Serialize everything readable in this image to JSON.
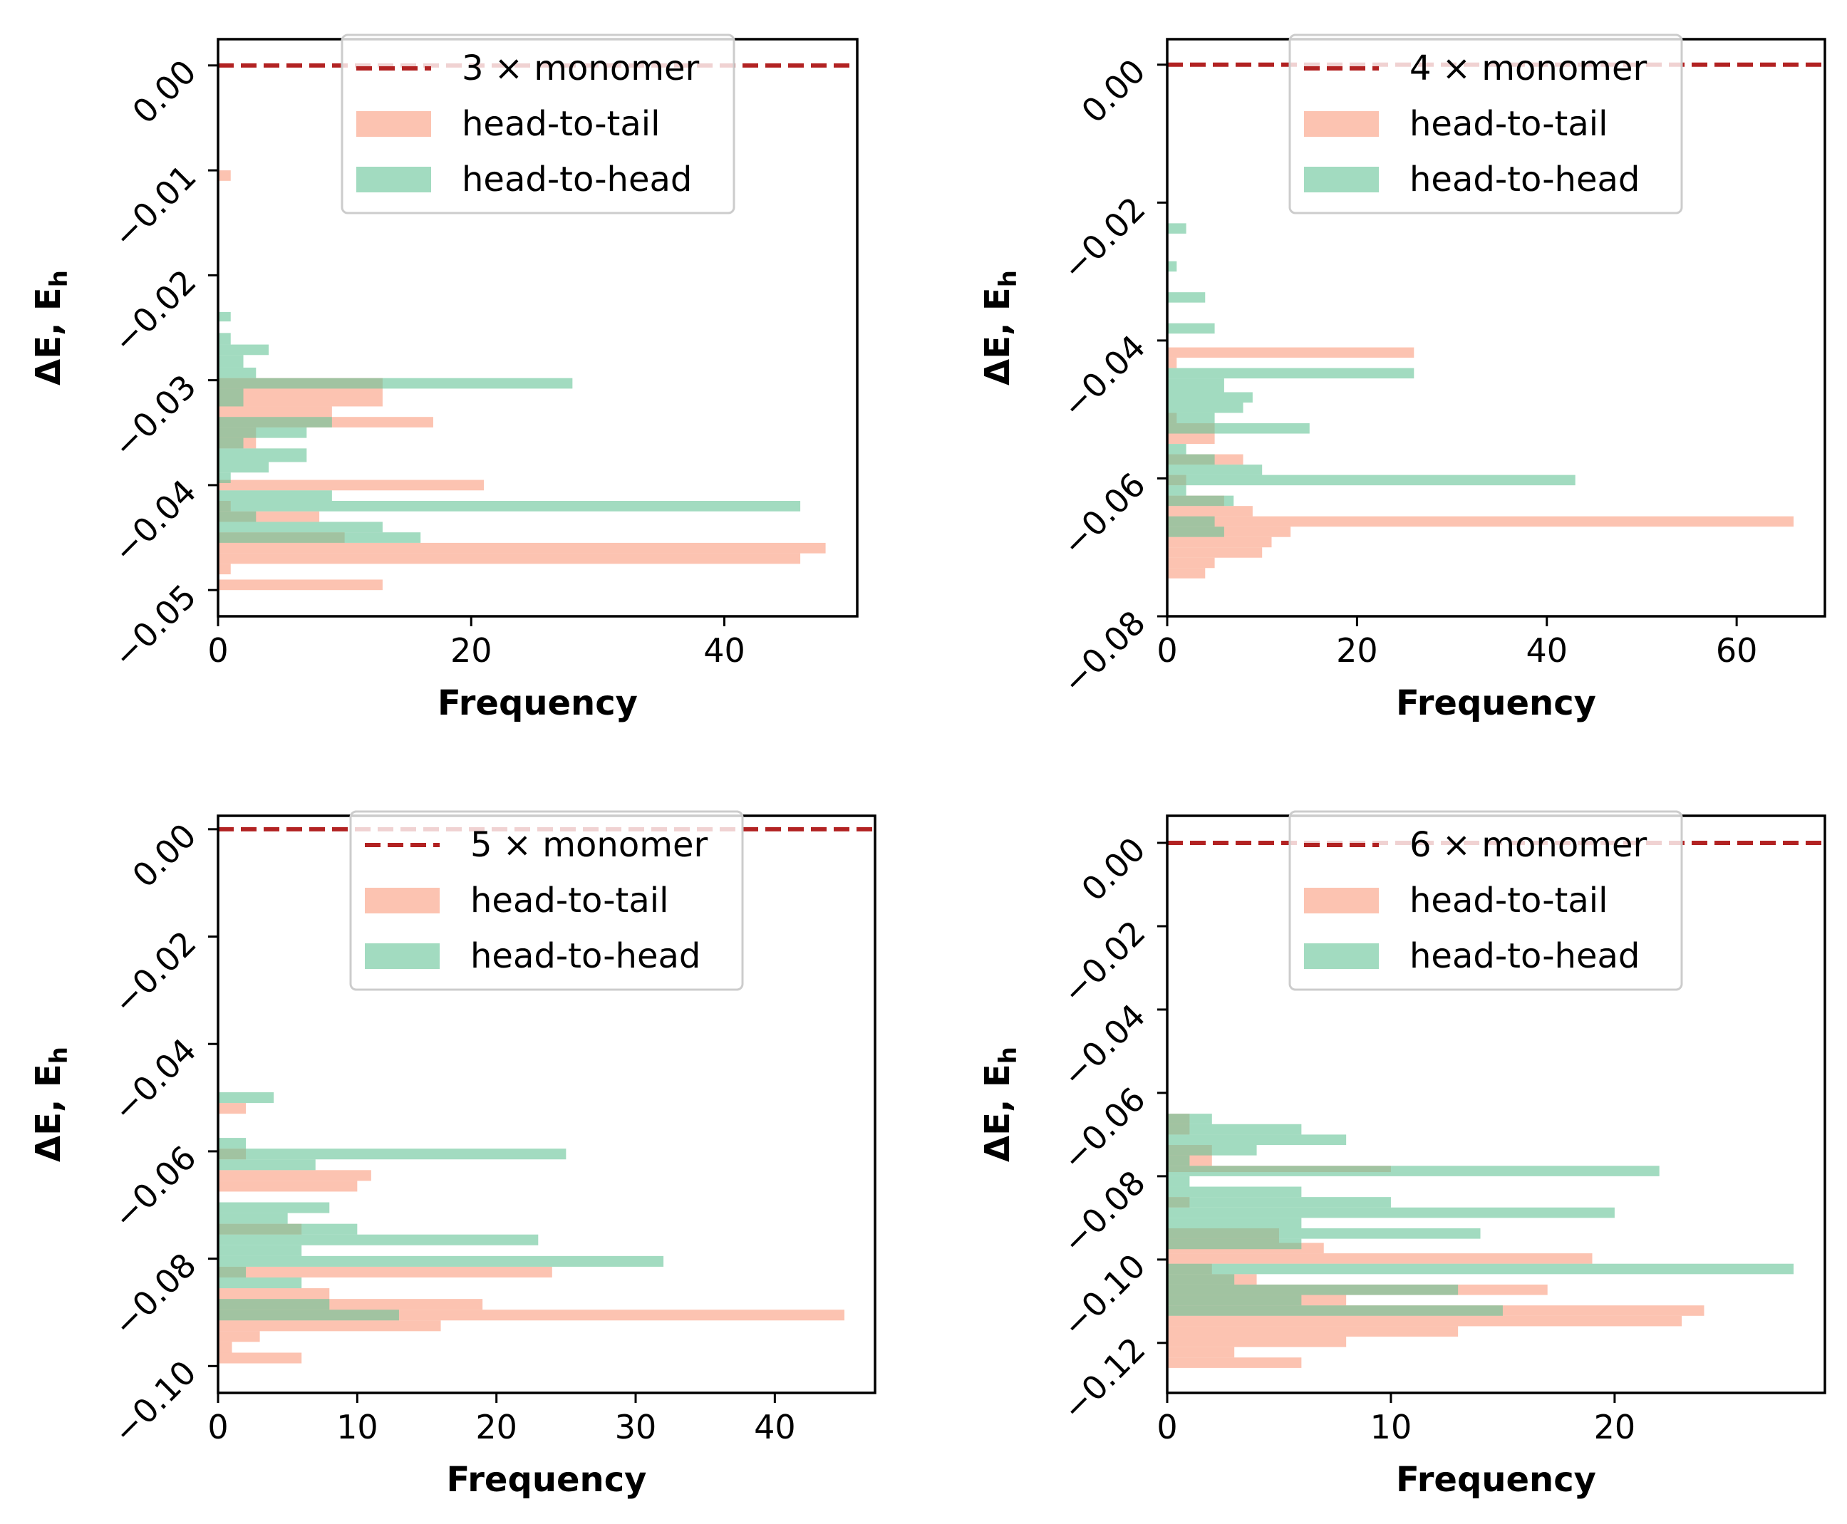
{
  "colors": {
    "head_to_tail": "#FA9B7D",
    "head_to_head": "#64C396",
    "monomer_line": "#B22222"
  },
  "chart_data": [
    {
      "type": "bar",
      "orientation": "horizontal",
      "xlabel": "Frequency",
      "ylabel": "ΔE, E",
      "ylabel_subscript": "h",
      "xlim": [
        0,
        50.5
      ],
      "ylim": [
        -0.0525,
        0.0025
      ],
      "xticks": [
        0,
        20,
        40
      ],
      "yticks": [
        0.0,
        -0.01,
        -0.02,
        -0.03,
        -0.04,
        -0.05
      ],
      "ytick_labels": [
        "0.00",
        "−0.01",
        "−0.02",
        "−0.03",
        "−0.04",
        "−0.05"
      ],
      "legend": {
        "position": "top-center",
        "entries": [
          "3 × monomer",
          "head-to-tail",
          "head-to-head"
        ]
      },
      "reference_line": {
        "label": "3 × monomer",
        "y": 0.0,
        "style": "dashed"
      },
      "series": [
        {
          "name": "head-to-tail",
          "bars": [
            {
              "y0": -0.011,
              "y1": -0.01,
              "value": 1
            },
            {
              "y0": -0.0325,
              "y1": -0.0298,
              "value": 13
            },
            {
              "y0": -0.0335,
              "y1": -0.0325,
              "value": 9
            },
            {
              "y0": -0.0345,
              "y1": -0.0335,
              "value": 17
            },
            {
              "y0": -0.0365,
              "y1": -0.0345,
              "value": 3
            },
            {
              "y0": -0.0405,
              "y1": -0.0395,
              "value": 21
            },
            {
              "y0": -0.0425,
              "y1": -0.0415,
              "value": 1
            },
            {
              "y0": -0.0435,
              "y1": -0.0425,
              "value": 8
            },
            {
              "y0": -0.0455,
              "y1": -0.0445,
              "value": 10
            },
            {
              "y0": -0.0465,
              "y1": -0.0455,
              "value": 48
            },
            {
              "y0": -0.0475,
              "y1": -0.0465,
              "value": 46
            },
            {
              "y0": -0.0485,
              "y1": -0.0475,
              "value": 1
            },
            {
              "y0": -0.05,
              "y1": -0.049,
              "value": 13
            }
          ]
        },
        {
          "name": "head-to-head",
          "bars": [
            {
              "y0": -0.0244,
              "y1": -0.0235,
              "value": 1
            },
            {
              "y0": -0.0266,
              "y1": -0.0255,
              "value": 1
            },
            {
              "y0": -0.0276,
              "y1": -0.0266,
              "value": 4
            },
            {
              "y0": -0.0288,
              "y1": -0.0276,
              "value": 2
            },
            {
              "y0": -0.0298,
              "y1": -0.0288,
              "value": 3
            },
            {
              "y0": -0.0308,
              "y1": -0.0298,
              "value": 28
            },
            {
              "y0": -0.0325,
              "y1": -0.0308,
              "value": 2
            },
            {
              "y0": -0.0345,
              "y1": -0.0335,
              "value": 9
            },
            {
              "y0": -0.0355,
              "y1": -0.0345,
              "value": 7
            },
            {
              "y0": -0.0365,
              "y1": -0.0355,
              "value": 2
            },
            {
              "y0": -0.0378,
              "y1": -0.0365,
              "value": 7
            },
            {
              "y0": -0.0388,
              "y1": -0.0378,
              "value": 4
            },
            {
              "y0": -0.0398,
              "y1": -0.0388,
              "value": 1
            },
            {
              "y0": -0.0415,
              "y1": -0.0405,
              "value": 9
            },
            {
              "y0": -0.0425,
              "y1": -0.0415,
              "value": 46
            },
            {
              "y0": -0.0435,
              "y1": -0.0425,
              "value": 3
            },
            {
              "y0": -0.0445,
              "y1": -0.0435,
              "value": 13
            },
            {
              "y0": -0.0455,
              "y1": -0.0445,
              "value": 16
            }
          ]
        }
      ]
    },
    {
      "type": "bar",
      "orientation": "horizontal",
      "xlabel": "Frequency",
      "ylabel": "ΔE, E",
      "ylabel_subscript": "h",
      "xlim": [
        0,
        69.3
      ],
      "ylim": [
        -0.08,
        0.0037
      ],
      "xticks": [
        0,
        20,
        40,
        60
      ],
      "yticks": [
        0.0,
        -0.02,
        -0.04,
        -0.06,
        -0.08
      ],
      "ytick_labels": [
        "0.00",
        "−0.02",
        "−0.04",
        "−0.06",
        "−0.08"
      ],
      "legend": {
        "position": "top-center",
        "entries": [
          "4 × monomer",
          "head-to-tail",
          "head-to-head"
        ]
      },
      "reference_line": {
        "label": "4 × monomer",
        "y": 0.0,
        "style": "dashed"
      },
      "series": [
        {
          "name": "head-to-tail",
          "bars": [
            {
              "y0": -0.0425,
              "y1": -0.041,
              "value": 26
            },
            {
              "y0": -0.044,
              "y1": -0.0425,
              "value": 1
            },
            {
              "y0": -0.052,
              "y1": -0.0505,
              "value": 1
            },
            {
              "y0": -0.055,
              "y1": -0.052,
              "value": 5
            },
            {
              "y0": -0.058,
              "y1": -0.0565,
              "value": 8
            },
            {
              "y0": -0.061,
              "y1": -0.0595,
              "value": 2
            },
            {
              "y0": -0.064,
              "y1": -0.0625,
              "value": 6
            },
            {
              "y0": -0.0655,
              "y1": -0.064,
              "value": 9
            },
            {
              "y0": -0.067,
              "y1": -0.0655,
              "value": 66
            },
            {
              "y0": -0.0685,
              "y1": -0.067,
              "value": 13
            },
            {
              "y0": -0.07,
              "y1": -0.0685,
              "value": 11
            },
            {
              "y0": -0.0715,
              "y1": -0.07,
              "value": 10
            },
            {
              "y0": -0.073,
              "y1": -0.0715,
              "value": 5
            },
            {
              "y0": -0.0745,
              "y1": -0.073,
              "value": 4
            }
          ]
        },
        {
          "name": "head-to-head",
          "bars": [
            {
              "y0": -0.0245,
              "y1": -0.023,
              "value": 2
            },
            {
              "y0": -0.03,
              "y1": -0.0285,
              "value": 1
            },
            {
              "y0": -0.0345,
              "y1": -0.033,
              "value": 4
            },
            {
              "y0": -0.039,
              "y1": -0.0375,
              "value": 5
            },
            {
              "y0": -0.0455,
              "y1": -0.044,
              "value": 26
            },
            {
              "y0": -0.0475,
              "y1": -0.0455,
              "value": 6
            },
            {
              "y0": -0.049,
              "y1": -0.0475,
              "value": 9
            },
            {
              "y0": -0.0505,
              "y1": -0.049,
              "value": 8
            },
            {
              "y0": -0.052,
              "y1": -0.0505,
              "value": 5
            },
            {
              "y0": -0.0535,
              "y1": -0.052,
              "value": 15
            },
            {
              "y0": -0.0565,
              "y1": -0.055,
              "value": 2
            },
            {
              "y0": -0.058,
              "y1": -0.0565,
              "value": 5
            },
            {
              "y0": -0.0595,
              "y1": -0.058,
              "value": 10
            },
            {
              "y0": -0.061,
              "y1": -0.0595,
              "value": 43
            },
            {
              "y0": -0.0625,
              "y1": -0.061,
              "value": 2
            },
            {
              "y0": -0.064,
              "y1": -0.0625,
              "value": 7
            },
            {
              "y0": -0.067,
              "y1": -0.0655,
              "value": 5
            },
            {
              "y0": -0.0685,
              "y1": -0.067,
              "value": 6
            }
          ]
        }
      ]
    },
    {
      "type": "bar",
      "orientation": "horizontal",
      "xlabel": "Frequency",
      "ylabel": "ΔE, E",
      "ylabel_subscript": "h",
      "xlim": [
        0,
        47.2
      ],
      "ylim": [
        -0.105,
        0.0025
      ],
      "xticks": [
        0,
        10,
        20,
        30,
        40
      ],
      "yticks": [
        0.0,
        -0.02,
        -0.04,
        -0.06,
        -0.08,
        -0.1
      ],
      "ytick_labels": [
        "0.00",
        "−0.02",
        "−0.04",
        "−0.06",
        "−0.08",
        "−0.10"
      ],
      "legend": {
        "position": "top-center",
        "entries": [
          "5 × monomer",
          "head-to-tail",
          "head-to-head"
        ]
      },
      "reference_line": {
        "label": "5 × monomer",
        "y": 0.0,
        "style": "dashed"
      },
      "series": [
        {
          "name": "head-to-tail",
          "bars": [
            {
              "y0": -0.053,
              "y1": -0.051,
              "value": 2
            },
            {
              "y0": -0.0615,
              "y1": -0.0595,
              "value": 2
            },
            {
              "y0": -0.0655,
              "y1": -0.0635,
              "value": 11
            },
            {
              "y0": -0.0675,
              "y1": -0.0655,
              "value": 10
            },
            {
              "y0": -0.0755,
              "y1": -0.0735,
              "value": 6
            },
            {
              "y0": -0.0835,
              "y1": -0.0815,
              "value": 24
            },
            {
              "y0": -0.0875,
              "y1": -0.0855,
              "value": 8
            },
            {
              "y0": -0.0895,
              "y1": -0.0875,
              "value": 19
            },
            {
              "y0": -0.0915,
              "y1": -0.0895,
              "value": 45
            },
            {
              "y0": -0.0935,
              "y1": -0.0915,
              "value": 16
            },
            {
              "y0": -0.0955,
              "y1": -0.0935,
              "value": 3
            },
            {
              "y0": -0.0975,
              "y1": -0.0955,
              "value": 1
            },
            {
              "y0": -0.0995,
              "y1": -0.0975,
              "value": 6
            }
          ]
        },
        {
          "name": "head-to-head",
          "bars": [
            {
              "y0": -0.051,
              "y1": -0.049,
              "value": 4
            },
            {
              "y0": -0.0595,
              "y1": -0.0575,
              "value": 2
            },
            {
              "y0": -0.0615,
              "y1": -0.0595,
              "value": 25
            },
            {
              "y0": -0.0635,
              "y1": -0.0615,
              "value": 7
            },
            {
              "y0": -0.0715,
              "y1": -0.0695,
              "value": 8
            },
            {
              "y0": -0.0735,
              "y1": -0.0715,
              "value": 5
            },
            {
              "y0": -0.0755,
              "y1": -0.0735,
              "value": 10
            },
            {
              "y0": -0.0775,
              "y1": -0.0755,
              "value": 23
            },
            {
              "y0": -0.0795,
              "y1": -0.0775,
              "value": 6
            },
            {
              "y0": -0.0815,
              "y1": -0.0795,
              "value": 32
            },
            {
              "y0": -0.0835,
              "y1": -0.0815,
              "value": 2
            },
            {
              "y0": -0.0855,
              "y1": -0.0835,
              "value": 6
            },
            {
              "y0": -0.0895,
              "y1": -0.0875,
              "value": 8
            },
            {
              "y0": -0.0915,
              "y1": -0.0895,
              "value": 13
            }
          ]
        }
      ]
    },
    {
      "type": "bar",
      "orientation": "horizontal",
      "xlabel": "Frequency",
      "ylabel": "ΔE, E",
      "ylabel_subscript": "h",
      "xlim": [
        0,
        29.4
      ],
      "ylim": [
        -0.132,
        0.0065
      ],
      "xticks": [
        0,
        10,
        20
      ],
      "yticks": [
        0.0,
        -0.02,
        -0.04,
        -0.06,
        -0.08,
        -0.1,
        -0.12
      ],
      "ytick_labels": [
        "0.00",
        "−0.02",
        "−0.04",
        "−0.06",
        "−0.08",
        "−0.10",
        "−0.12"
      ],
      "legend": {
        "position": "top-center",
        "entries": [
          "6 × monomer",
          "head-to-tail",
          "head-to-head"
        ]
      },
      "reference_line": {
        "label": "6 × monomer",
        "y": 0.0,
        "style": "dashed"
      },
      "series": [
        {
          "name": "head-to-tail",
          "bars": [
            {
              "y0": -0.07,
              "y1": -0.065,
              "value": 1
            },
            {
              "y0": -0.0775,
              "y1": -0.0725,
              "value": 2
            },
            {
              "y0": -0.079,
              "y1": -0.0775,
              "value": 10
            },
            {
              "y0": -0.0875,
              "y1": -0.085,
              "value": 1
            },
            {
              "y0": -0.096,
              "y1": -0.0925,
              "value": 5
            },
            {
              "y0": -0.0985,
              "y1": -0.096,
              "value": 7
            },
            {
              "y0": -0.101,
              "y1": -0.0985,
              "value": 19
            },
            {
              "y0": -0.1035,
              "y1": -0.101,
              "value": 2
            },
            {
              "y0": -0.106,
              "y1": -0.1035,
              "value": 4
            },
            {
              "y0": -0.1085,
              "y1": -0.106,
              "value": 17
            },
            {
              "y0": -0.111,
              "y1": -0.1085,
              "value": 8
            },
            {
              "y0": -0.1135,
              "y1": -0.111,
              "value": 24
            },
            {
              "y0": -0.116,
              "y1": -0.1135,
              "value": 23
            },
            {
              "y0": -0.1185,
              "y1": -0.116,
              "value": 13
            },
            {
              "y0": -0.121,
              "y1": -0.1185,
              "value": 8
            },
            {
              "y0": -0.1235,
              "y1": -0.121,
              "value": 3
            },
            {
              "y0": -0.126,
              "y1": -0.1235,
              "value": 6
            }
          ]
        },
        {
          "name": "head-to-head",
          "bars": [
            {
              "y0": -0.0675,
              "y1": -0.065,
              "value": 2
            },
            {
              "y0": -0.07,
              "y1": -0.0675,
              "value": 6
            },
            {
              "y0": -0.0725,
              "y1": -0.07,
              "value": 8
            },
            {
              "y0": -0.075,
              "y1": -0.0725,
              "value": 4
            },
            {
              "y0": -0.0775,
              "y1": -0.075,
              "value": 1
            },
            {
              "y0": -0.08,
              "y1": -0.0775,
              "value": 22
            },
            {
              "y0": -0.0825,
              "y1": -0.08,
              "value": 1
            },
            {
              "y0": -0.085,
              "y1": -0.0825,
              "value": 6
            },
            {
              "y0": -0.0875,
              "y1": -0.085,
              "value": 10
            },
            {
              "y0": -0.09,
              "y1": -0.0875,
              "value": 20
            },
            {
              "y0": -0.0925,
              "y1": -0.09,
              "value": 6
            },
            {
              "y0": -0.095,
              "y1": -0.0925,
              "value": 14
            },
            {
              "y0": -0.0975,
              "y1": -0.095,
              "value": 6
            },
            {
              "y0": -0.1035,
              "y1": -0.101,
              "value": 28
            },
            {
              "y0": -0.106,
              "y1": -0.1035,
              "value": 3
            },
            {
              "y0": -0.1085,
              "y1": -0.106,
              "value": 13
            },
            {
              "y0": -0.111,
              "y1": -0.1085,
              "value": 6
            },
            {
              "y0": -0.1135,
              "y1": -0.111,
              "value": 15
            }
          ]
        }
      ]
    }
  ]
}
